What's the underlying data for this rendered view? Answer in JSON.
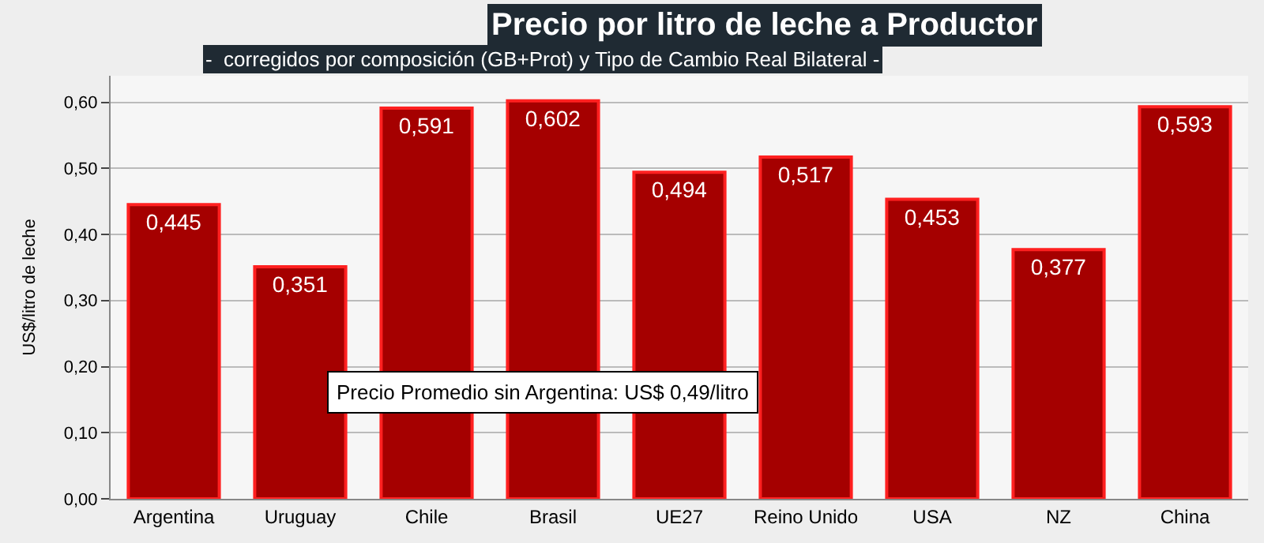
{
  "chart_data": {
    "type": "bar",
    "title": "Precio por litro de leche a Productor",
    "subtitle": "-  corregidos por composición (GB+Prot) y Tipo de Cambio Real Bilateral -",
    "ylabel": "US$/litro de leche",
    "categories": [
      "Argentina",
      "Uruguay",
      "Chile",
      "Brasil",
      "UE27",
      "Reino Unido",
      "USA",
      "NZ",
      "China"
    ],
    "values": [
      0.445,
      0.351,
      0.591,
      0.602,
      0.494,
      0.517,
      0.453,
      0.377,
      0.593
    ],
    "value_labels": [
      "0,445",
      "0,351",
      "0,591",
      "0,602",
      "0,494",
      "0,517",
      "0,453",
      "0,377",
      "0,593"
    ],
    "color": "#a50000",
    "ylim": [
      0,
      0.64
    ],
    "yticks": [
      {
        "value": 0,
        "label": "0,00"
      },
      {
        "value": 0.1,
        "label": "0,10"
      },
      {
        "value": 0.2,
        "label": "0,20"
      },
      {
        "value": 0.3,
        "label": "0,30"
      },
      {
        "value": 0.4,
        "label": "0,40"
      },
      {
        "value": 0.5,
        "label": "0,50"
      },
      {
        "value": 0.6,
        "label": "0,60"
      }
    ],
    "grid": "y",
    "annotations": [
      "Precio Promedio sin Argentina: US$ 0,49/litro"
    ]
  }
}
